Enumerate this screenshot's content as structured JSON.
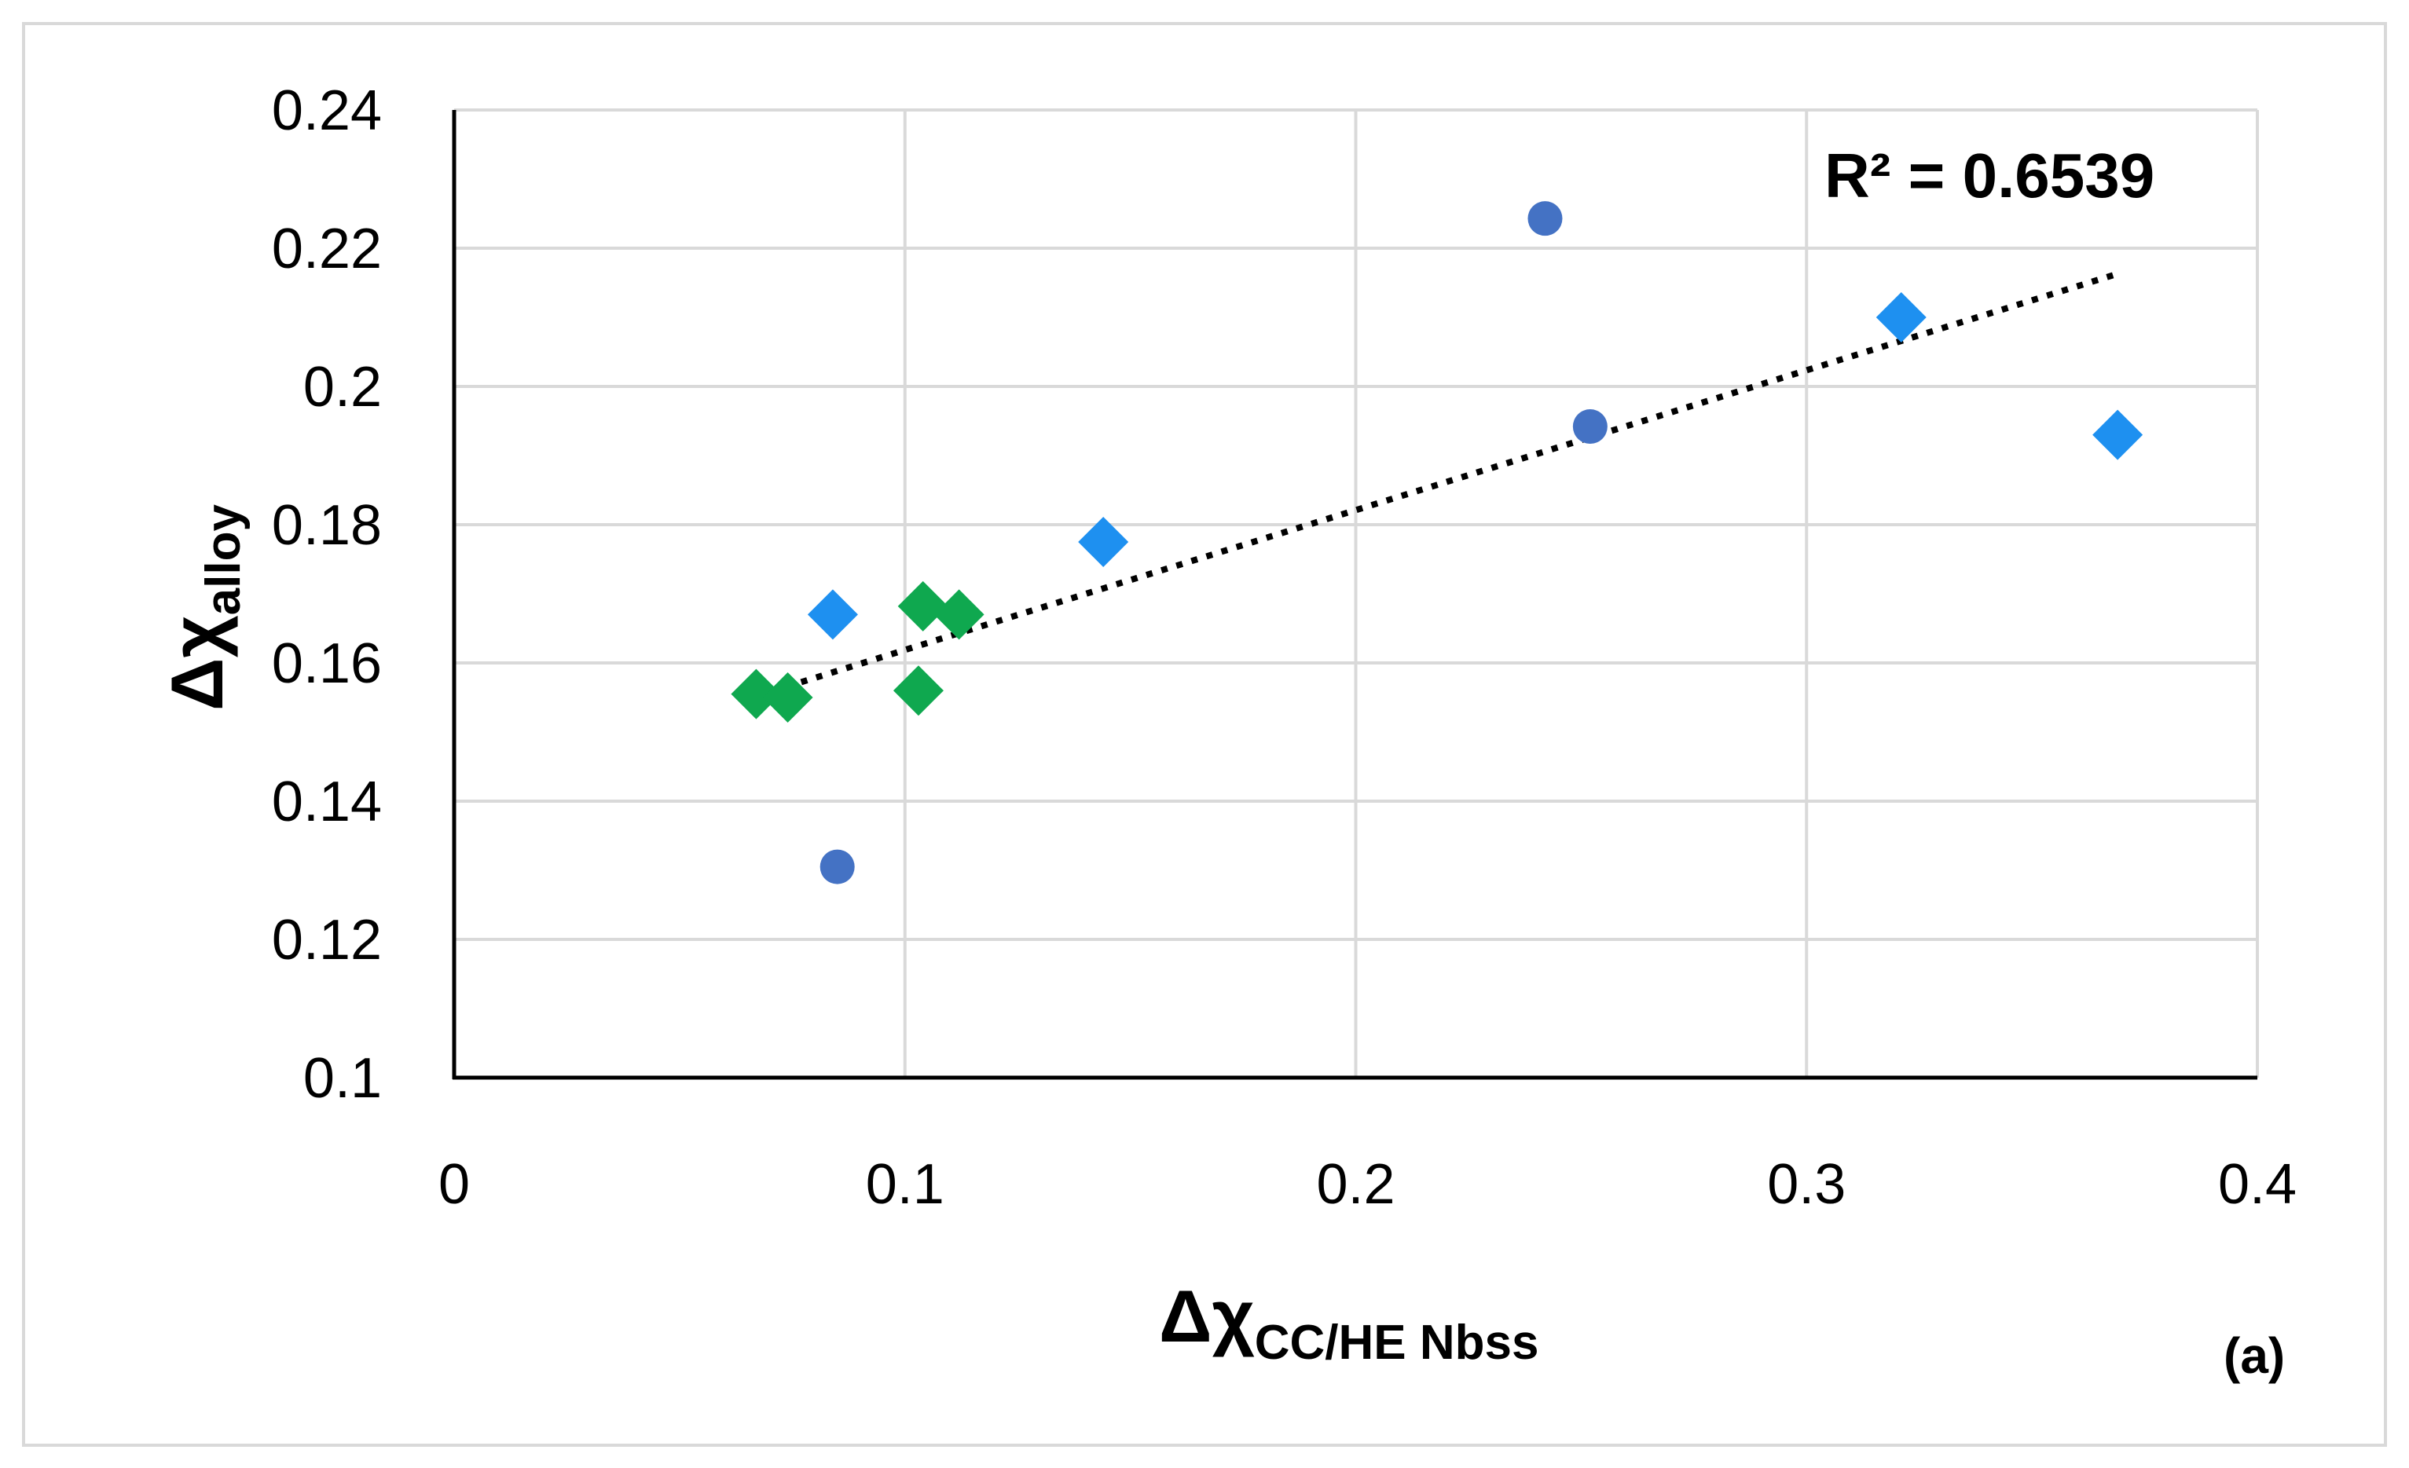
{
  "chart_data": {
    "type": "scatter",
    "x_range": [
      0,
      0.4
    ],
    "y_range": [
      0.1,
      0.24
    ],
    "x_ticks": [
      "0",
      "0.1",
      "0.2",
      "0.3",
      "0.4"
    ],
    "y_ticks": [
      "0.1",
      "0.12",
      "0.14",
      "0.16",
      "0.18",
      "0.2",
      "0.22",
      "0.24"
    ],
    "grid": true,
    "legend": "none",
    "xlabel": {
      "main": "Δχ",
      "sub": "CC/HE Nbss"
    },
    "ylabel": {
      "main": "Δχ",
      "sub": "alloy"
    },
    "r_squared_label": "R² = 0.6539",
    "panel_label": "(a)",
    "series": [
      {
        "marker": "circle",
        "color": "#4472C4",
        "points": [
          [
            0.085,
            0.1305
          ],
          [
            0.242,
            0.2243
          ],
          [
            0.252,
            0.1942
          ]
        ]
      },
      {
        "marker": "diamond",
        "color": "#1E90F0",
        "points": [
          [
            0.084,
            0.167
          ],
          [
            0.144,
            0.1775
          ],
          [
            0.321,
            0.21
          ],
          [
            0.369,
            0.193
          ]
        ]
      },
      {
        "marker": "diamond",
        "color": "#0FA84F",
        "points": [
          [
            0.067,
            0.1555
          ],
          [
            0.074,
            0.155
          ],
          [
            0.103,
            0.156
          ],
          [
            0.104,
            0.1682
          ],
          [
            0.112,
            0.167
          ]
        ]
      }
    ],
    "trendline": {
      "style": "dotted",
      "color": "#000000",
      "x_start": 0.067,
      "x_end": 0.369,
      "y_start": 0.1552,
      "y_end": 0.2163
    }
  }
}
